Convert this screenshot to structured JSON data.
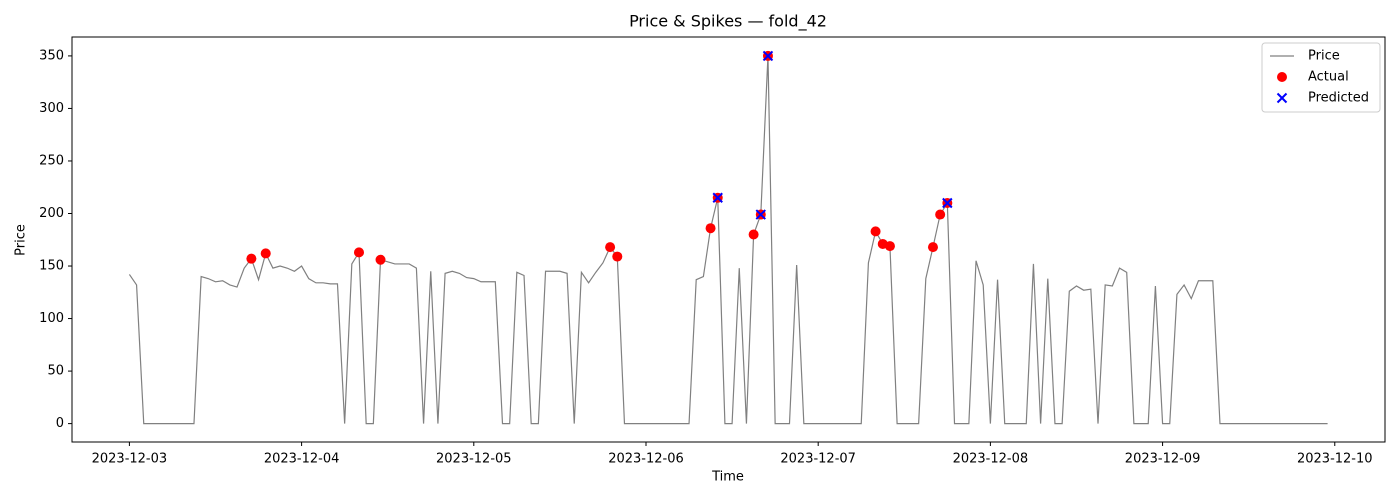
{
  "chart_data": {
    "type": "line",
    "title": "Price & Spikes — fold_42",
    "xlabel": "Time",
    "ylabel": "Price",
    "xlim": [
      "2023-12-02T16:00",
      "2023-12-10T07:00"
    ],
    "xticks": [
      {
        "value": "2023-12-03T00:00",
        "label": "2023-12-03"
      },
      {
        "value": "2023-12-04T00:00",
        "label": "2023-12-04"
      },
      {
        "value": "2023-12-05T00:00",
        "label": "2023-12-05"
      },
      {
        "value": "2023-12-06T00:00",
        "label": "2023-12-06"
      },
      {
        "value": "2023-12-07T00:00",
        "label": "2023-12-07"
      },
      {
        "value": "2023-12-08T00:00",
        "label": "2023-12-08"
      },
      {
        "value": "2023-12-09T00:00",
        "label": "2023-12-09"
      },
      {
        "value": "2023-12-10T00:00",
        "label": "2023-12-10"
      }
    ],
    "ylim": [
      -17.5,
      368
    ],
    "yticks": [
      0,
      50,
      100,
      150,
      200,
      250,
      300,
      350
    ],
    "grid": false,
    "legend": "upper right",
    "x": [
      "2023-12-03T00:00",
      "2023-12-03T01:00",
      "2023-12-03T02:00",
      "2023-12-03T03:00",
      "2023-12-03T04:00",
      "2023-12-03T05:00",
      "2023-12-03T06:00",
      "2023-12-03T07:00",
      "2023-12-03T08:00",
      "2023-12-03T09:00",
      "2023-12-03T10:00",
      "2023-12-03T11:00",
      "2023-12-03T12:00",
      "2023-12-03T13:00",
      "2023-12-03T14:00",
      "2023-12-03T15:00",
      "2023-12-03T16:00",
      "2023-12-03T17:00",
      "2023-12-03T18:00",
      "2023-12-03T19:00",
      "2023-12-03T20:00",
      "2023-12-03T21:00",
      "2023-12-03T22:00",
      "2023-12-03T23:00",
      "2023-12-04T00:00",
      "2023-12-04T01:00",
      "2023-12-04T02:00",
      "2023-12-04T03:00",
      "2023-12-04T04:00",
      "2023-12-04T05:00",
      "2023-12-04T06:00",
      "2023-12-04T07:00",
      "2023-12-04T08:00",
      "2023-12-04T09:00",
      "2023-12-04T10:00",
      "2023-12-04T11:00",
      "2023-12-04T12:00",
      "2023-12-04T13:00",
      "2023-12-04T14:00",
      "2023-12-04T15:00",
      "2023-12-04T16:00",
      "2023-12-04T17:00",
      "2023-12-04T18:00",
      "2023-12-04T19:00",
      "2023-12-04T20:00",
      "2023-12-04T21:00",
      "2023-12-04T22:00",
      "2023-12-04T23:00",
      "2023-12-05T00:00",
      "2023-12-05T01:00",
      "2023-12-05T02:00",
      "2023-12-05T03:00",
      "2023-12-05T04:00",
      "2023-12-05T05:00",
      "2023-12-05T06:00",
      "2023-12-05T07:00",
      "2023-12-05T08:00",
      "2023-12-05T09:00",
      "2023-12-05T10:00",
      "2023-12-05T11:00",
      "2023-12-05T12:00",
      "2023-12-05T13:00",
      "2023-12-05T14:00",
      "2023-12-05T15:00",
      "2023-12-05T16:00",
      "2023-12-05T17:00",
      "2023-12-05T18:00",
      "2023-12-05T19:00",
      "2023-12-05T20:00",
      "2023-12-05T21:00",
      "2023-12-05T22:00",
      "2023-12-05T23:00",
      "2023-12-06T00:00",
      "2023-12-06T01:00",
      "2023-12-06T02:00",
      "2023-12-06T03:00",
      "2023-12-06T04:00",
      "2023-12-06T05:00",
      "2023-12-06T06:00",
      "2023-12-06T07:00",
      "2023-12-06T08:00",
      "2023-12-06T09:00",
      "2023-12-06T10:00",
      "2023-12-06T11:00",
      "2023-12-06T12:00",
      "2023-12-06T13:00",
      "2023-12-06T14:00",
      "2023-12-06T15:00",
      "2023-12-06T16:00",
      "2023-12-06T17:00",
      "2023-12-06T18:00",
      "2023-12-06T19:00",
      "2023-12-06T20:00",
      "2023-12-06T21:00",
      "2023-12-06T22:00",
      "2023-12-06T23:00",
      "2023-12-07T00:00",
      "2023-12-07T01:00",
      "2023-12-07T02:00",
      "2023-12-07T03:00",
      "2023-12-07T04:00",
      "2023-12-07T05:00",
      "2023-12-07T06:00",
      "2023-12-07T07:00",
      "2023-12-07T08:00",
      "2023-12-07T09:00",
      "2023-12-07T10:00",
      "2023-12-07T11:00",
      "2023-12-07T12:00",
      "2023-12-07T13:00",
      "2023-12-07T14:00",
      "2023-12-07T15:00",
      "2023-12-07T16:00",
      "2023-12-07T17:00",
      "2023-12-07T18:00",
      "2023-12-07T19:00",
      "2023-12-07T20:00",
      "2023-12-07T21:00",
      "2023-12-07T22:00",
      "2023-12-07T23:00",
      "2023-12-08T00:00",
      "2023-12-08T01:00",
      "2023-12-08T02:00",
      "2023-12-08T03:00",
      "2023-12-08T04:00",
      "2023-12-08T05:00",
      "2023-12-08T06:00",
      "2023-12-08T07:00",
      "2023-12-08T08:00",
      "2023-12-08T09:00",
      "2023-12-08T10:00",
      "2023-12-08T11:00",
      "2023-12-08T12:00",
      "2023-12-08T13:00",
      "2023-12-08T14:00",
      "2023-12-08T15:00",
      "2023-12-08T16:00",
      "2023-12-08T17:00",
      "2023-12-08T18:00",
      "2023-12-08T19:00",
      "2023-12-08T20:00",
      "2023-12-08T21:00",
      "2023-12-08T22:00",
      "2023-12-08T23:00",
      "2023-12-09T00:00",
      "2023-12-09T01:00",
      "2023-12-09T02:00",
      "2023-12-09T03:00",
      "2023-12-09T04:00",
      "2023-12-09T05:00",
      "2023-12-09T06:00",
      "2023-12-09T07:00",
      "2023-12-09T08:00",
      "2023-12-09T09:00",
      "2023-12-09T10:00",
      "2023-12-09T11:00",
      "2023-12-09T12:00",
      "2023-12-09T13:00",
      "2023-12-09T14:00",
      "2023-12-09T15:00",
      "2023-12-09T16:00",
      "2023-12-09T17:00",
      "2023-12-09T18:00",
      "2023-12-09T19:00",
      "2023-12-09T20:00",
      "2023-12-09T21:00",
      "2023-12-09T22:00",
      "2023-12-09T23:00"
    ],
    "series": [
      {
        "name": "Price",
        "color": "#808080",
        "style": "line",
        "values": [
          142,
          132,
          0,
          0,
          0,
          0,
          0,
          0,
          0,
          0,
          140,
          138,
          135,
          136,
          132,
          130,
          148,
          157,
          137,
          162,
          148,
          150,
          148,
          145,
          150,
          138,
          134,
          134,
          133,
          133,
          0,
          152,
          163,
          0,
          0,
          156,
          154,
          152,
          152,
          152,
          148,
          0,
          145,
          0,
          143,
          145,
          143,
          139,
          138,
          135,
          135,
          135,
          0,
          0,
          144,
          141,
          0,
          0,
          145,
          145,
          145,
          143,
          0,
          144,
          134,
          144,
          153,
          168,
          159,
          0,
          0,
          0,
          0,
          0,
          0,
          0,
          0,
          0,
          0,
          137,
          140,
          186,
          215,
          0,
          0,
          148,
          0,
          180,
          199,
          350,
          0,
          0,
          0,
          151,
          0,
          0,
          0,
          0,
          0,
          0,
          0,
          0,
          0,
          153,
          183,
          171,
          169,
          0,
          0,
          0,
          0,
          138,
          168,
          199,
          210,
          0,
          0,
          0,
          155,
          132,
          0,
          137,
          0,
          0,
          0,
          0,
          152,
          0,
          138,
          0,
          0,
          126,
          131,
          127,
          128,
          0,
          132,
          131,
          148,
          144,
          0,
          0,
          0,
          131,
          0,
          0,
          123,
          132,
          119,
          136,
          136,
          136,
          0,
          0,
          0,
          0,
          0,
          0,
          0,
          0,
          0,
          0,
          0,
          0,
          0,
          0,
          0,
          0
        ]
      },
      {
        "name": "Actual",
        "color": "#ff0000",
        "style": "dot",
        "x": [
          "2023-12-03T17:00",
          "2023-12-03T19:00",
          "2023-12-04T08:00",
          "2023-12-04T11:00",
          "2023-12-05T19:00",
          "2023-12-05T20:00",
          "2023-12-06T09:00",
          "2023-12-06T10:00",
          "2023-12-06T15:00",
          "2023-12-06T16:00",
          "2023-12-06T17:00",
          "2023-12-07T08:00",
          "2023-12-07T09:00",
          "2023-12-07T10:00",
          "2023-12-07T16:00",
          "2023-12-07T17:00",
          "2023-12-07T18:00"
        ],
        "values": [
          157,
          162,
          163,
          156,
          168,
          159,
          186,
          215,
          180,
          199,
          350,
          183,
          171,
          169,
          168,
          199,
          210
        ]
      },
      {
        "name": "Predicted",
        "color": "#0000ff",
        "style": "cross",
        "x": [
          "2023-12-06T10:00",
          "2023-12-06T16:00",
          "2023-12-06T17:00",
          "2023-12-07T18:00"
        ],
        "values": [
          215,
          199,
          350,
          210
        ]
      }
    ]
  }
}
